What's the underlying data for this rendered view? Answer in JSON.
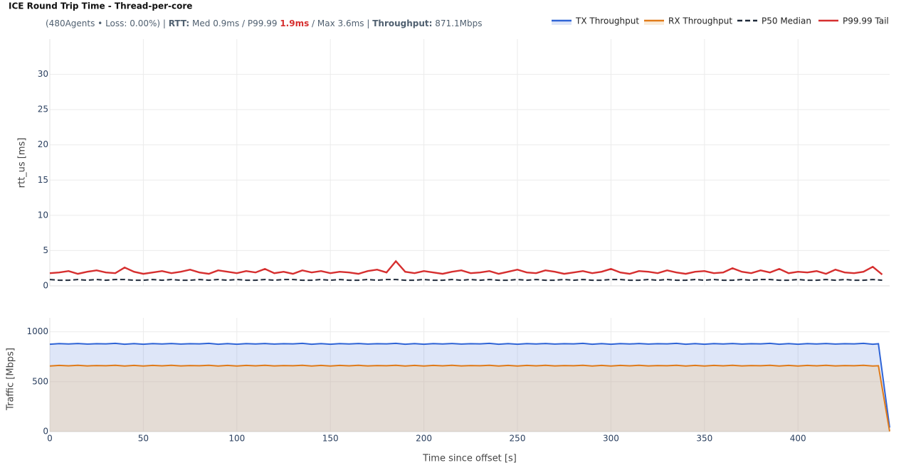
{
  "chart_data": [
    {
      "type": "line",
      "title": "ICE Round Trip Time - Thread-per-core",
      "subtitle": [
        "(480Agents • Loss: 0.00%) | ",
        "RTT:",
        " Med 0.9ms / P99.99 ",
        "1.9ms",
        " / Max 3.6ms | ",
        "Throughput:",
        " 871.1Mbps"
      ],
      "y_label": "rtt_us [ms]",
      "xlim": [
        0,
        449
      ],
      "ylim": [
        0,
        35
      ],
      "yticks": [
        0,
        5,
        10,
        15,
        20,
        25,
        30
      ],
      "grid": true,
      "x": [
        0,
        5,
        10,
        15,
        20,
        25,
        30,
        35,
        40,
        45,
        50,
        55,
        60,
        65,
        70,
        75,
        80,
        85,
        90,
        95,
        100,
        105,
        110,
        115,
        120,
        125,
        130,
        135,
        140,
        145,
        150,
        155,
        160,
        165,
        170,
        175,
        180,
        185,
        190,
        195,
        200,
        205,
        210,
        215,
        220,
        225,
        230,
        235,
        240,
        245,
        250,
        255,
        260,
        265,
        270,
        275,
        280,
        285,
        290,
        295,
        300,
        305,
        310,
        315,
        320,
        325,
        330,
        335,
        340,
        345,
        350,
        355,
        360,
        365,
        370,
        375,
        380,
        385,
        390,
        395,
        400,
        405,
        410,
        415,
        420,
        425,
        430,
        435,
        440,
        445
      ],
      "series": [
        {
          "name": "P50 Median",
          "color": "#1f2a3a",
          "dash": true,
          "values": [
            0.9,
            0.8,
            0.8,
            0.9,
            0.8,
            0.9,
            0.8,
            0.9,
            0.9,
            0.8,
            0.8,
            0.9,
            0.8,
            0.9,
            0.8,
            0.8,
            0.9,
            0.8,
            0.9,
            0.8,
            0.9,
            0.8,
            0.8,
            0.9,
            0.8,
            0.9,
            0.9,
            0.8,
            0.8,
            0.9,
            0.8,
            0.9,
            0.8,
            0.8,
            0.9,
            0.8,
            0.9,
            0.9,
            0.8,
            0.8,
            0.9,
            0.8,
            0.8,
            0.9,
            0.8,
            0.9,
            0.8,
            0.9,
            0.8,
            0.8,
            0.9,
            0.8,
            0.9,
            0.8,
            0.8,
            0.9,
            0.8,
            0.9,
            0.8,
            0.8,
            0.9,
            0.9,
            0.8,
            0.8,
            0.9,
            0.8,
            0.9,
            0.8,
            0.8,
            0.9,
            0.8,
            0.9,
            0.8,
            0.8,
            0.9,
            0.8,
            0.9,
            0.9,
            0.8,
            0.8,
            0.9,
            0.8,
            0.8,
            0.9,
            0.8,
            0.9,
            0.8,
            0.8,
            0.9,
            0.8
          ]
        },
        {
          "name": "P99.99 Tail",
          "color": "#d62f2f",
          "dash": false,
          "values": [
            1.8,
            1.9,
            2.1,
            1.7,
            2.0,
            2.2,
            1.9,
            1.8,
            2.6,
            2.0,
            1.7,
            1.9,
            2.1,
            1.8,
            2.0,
            2.3,
            1.9,
            1.7,
            2.2,
            2.0,
            1.8,
            2.1,
            1.9,
            2.4,
            1.8,
            2.0,
            1.7,
            2.2,
            1.9,
            2.1,
            1.8,
            2.0,
            1.9,
            1.7,
            2.1,
            2.3,
            1.9,
            3.5,
            2.0,
            1.8,
            2.1,
            1.9,
            1.7,
            2.0,
            2.2,
            1.8,
            1.9,
            2.1,
            1.7,
            2.0,
            2.3,
            1.9,
            1.8,
            2.2,
            2.0,
            1.7,
            1.9,
            2.1,
            1.8,
            2.0,
            2.4,
            1.9,
            1.7,
            2.1,
            2.0,
            1.8,
            2.2,
            1.9,
            1.7,
            2.0,
            2.1,
            1.8,
            1.9,
            2.5,
            2.0,
            1.8,
            2.2,
            1.9,
            2.4,
            1.8,
            2.0,
            1.9,
            2.1,
            1.7,
            2.3,
            1.9,
            1.8,
            2.0,
            2.7,
            1.6
          ]
        }
      ]
    },
    {
      "type": "area",
      "x_label": "Time since offset [s]",
      "y_label": "Traffic [Mbps]",
      "xlim": [
        0,
        449
      ],
      "xticks": [
        0,
        50,
        100,
        150,
        200,
        250,
        300,
        350,
        400
      ],
      "ylim": [
        0,
        1140
      ],
      "yticks": [
        0,
        500,
        1000
      ],
      "grid": true,
      "x": [
        0,
        5,
        10,
        15,
        20,
        25,
        30,
        35,
        40,
        45,
        50,
        55,
        60,
        65,
        70,
        75,
        80,
        85,
        90,
        95,
        100,
        105,
        110,
        115,
        120,
        125,
        130,
        135,
        140,
        145,
        150,
        155,
        160,
        165,
        170,
        175,
        180,
        185,
        190,
        195,
        200,
        205,
        210,
        215,
        220,
        225,
        230,
        235,
        240,
        245,
        250,
        255,
        260,
        265,
        270,
        275,
        280,
        285,
        290,
        295,
        300,
        305,
        310,
        315,
        320,
        325,
        330,
        335,
        340,
        345,
        350,
        355,
        360,
        365,
        370,
        375,
        380,
        385,
        390,
        395,
        400,
        405,
        410,
        415,
        420,
        425,
        430,
        435,
        440,
        443,
        449
      ],
      "series": [
        {
          "name": "TX Throughput",
          "color": "#2f64d6",
          "fill_color": "rgba(47,100,214,0.16)",
          "values": [
            876,
            882,
            878,
            883,
            877,
            881,
            879,
            884,
            876,
            882,
            876,
            882,
            878,
            883,
            877,
            881,
            879,
            884,
            876,
            882,
            876,
            882,
            878,
            883,
            877,
            881,
            879,
            884,
            876,
            882,
            876,
            882,
            878,
            883,
            877,
            881,
            879,
            884,
            876,
            882,
            876,
            882,
            878,
            883,
            877,
            881,
            879,
            884,
            876,
            882,
            876,
            882,
            878,
            883,
            877,
            881,
            879,
            884,
            876,
            882,
            876,
            882,
            878,
            883,
            877,
            881,
            879,
            884,
            876,
            882,
            876,
            882,
            878,
            883,
            877,
            881,
            879,
            884,
            876,
            882,
            876,
            882,
            878,
            883,
            877,
            881,
            879,
            884,
            876,
            880,
            40
          ]
        },
        {
          "name": "RX Throughput",
          "color": "#e07b1a",
          "fill_color": "rgba(240,200,150,0.35)",
          "values": [
            657,
            663,
            659,
            664,
            658,
            662,
            660,
            665,
            657,
            663,
            657,
            663,
            659,
            664,
            658,
            662,
            660,
            665,
            657,
            663,
            657,
            663,
            659,
            664,
            658,
            662,
            660,
            665,
            657,
            663,
            657,
            663,
            659,
            664,
            658,
            662,
            660,
            665,
            657,
            663,
            657,
            663,
            659,
            664,
            658,
            662,
            660,
            665,
            657,
            663,
            657,
            663,
            659,
            664,
            658,
            662,
            660,
            665,
            657,
            663,
            657,
            663,
            659,
            664,
            658,
            662,
            660,
            665,
            657,
            663,
            657,
            663,
            659,
            664,
            658,
            662,
            660,
            665,
            657,
            663,
            657,
            663,
            659,
            664,
            658,
            662,
            660,
            665,
            657,
            660,
            2
          ]
        }
      ]
    }
  ]
}
